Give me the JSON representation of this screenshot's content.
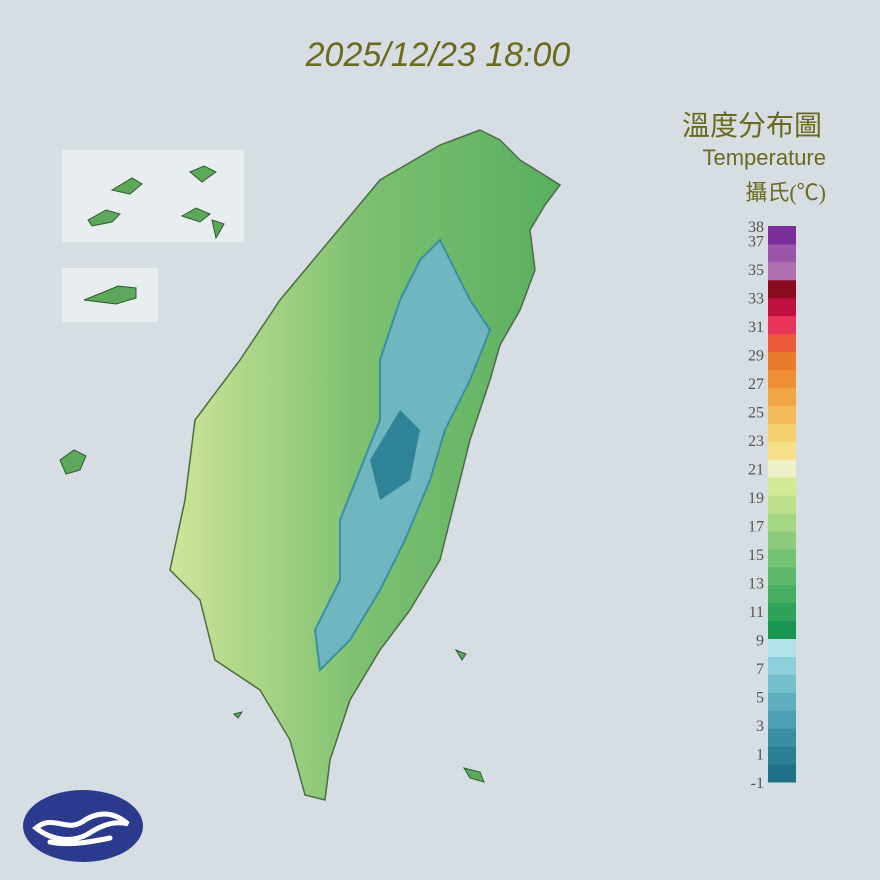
{
  "header": {
    "timestamp": "2025/12/23 18:00"
  },
  "legend": {
    "title": "溫度分布圖",
    "subtitle": "Temperature",
    "unit": "攝氏(℃)",
    "ticks": [
      38,
      37,
      35,
      33,
      31,
      29,
      27,
      25,
      23,
      21,
      19,
      17,
      15,
      13,
      11,
      9,
      7,
      5,
      3,
      1,
      -1
    ],
    "colors": [
      "#1f6f86",
      "#2a7f93",
      "#3b8fa2",
      "#4d9fb1",
      "#60afbf",
      "#76bfcc",
      "#8fcfd9",
      "#b3e3ea",
      "#1b9652",
      "#2fa35a",
      "#46ae61",
      "#5db86a",
      "#76c274",
      "#8ecc7d",
      "#a6d786",
      "#bfe08e",
      "#d4ea97",
      "#eef0c8",
      "#f6e08a",
      "#f5cf6e",
      "#f3bb5a",
      "#f1a646",
      "#ee8f36",
      "#ea7a2c",
      "#ec5a3c",
      "#e8345a",
      "#c01040",
      "#8a0a20",
      "#b070b0",
      "#9a55a8",
      "#7b2d9a"
    ]
  }
}
